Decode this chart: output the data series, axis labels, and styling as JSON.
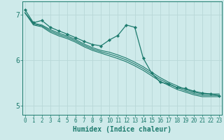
{
  "xlabel": "Humidex (Indice chaleur)",
  "background_color": "#ceeaea",
  "grid_color": "#b8d8d8",
  "line_color": "#1e7b6e",
  "x_values": [
    0,
    1,
    2,
    3,
    4,
    5,
    6,
    7,
    8,
    9,
    10,
    11,
    12,
    13,
    14,
    15,
    16,
    17,
    18,
    19,
    20,
    21,
    22,
    23
  ],
  "series_plain": [
    [
      7.05,
      6.82,
      6.78,
      6.68,
      6.6,
      6.54,
      6.46,
      6.36,
      6.28,
      6.22,
      6.18,
      6.12,
      6.05,
      5.96,
      5.86,
      5.74,
      5.62,
      5.52,
      5.44,
      5.36,
      5.3,
      5.26,
      5.26,
      5.26
    ],
    [
      7.05,
      6.8,
      6.76,
      6.65,
      6.57,
      6.51,
      6.43,
      6.33,
      6.25,
      6.19,
      6.14,
      6.08,
      6.01,
      5.92,
      5.82,
      5.7,
      5.58,
      5.49,
      5.4,
      5.33,
      5.27,
      5.23,
      5.23,
      5.23
    ],
    [
      7.05,
      6.78,
      6.74,
      6.62,
      6.54,
      6.48,
      6.4,
      6.3,
      6.22,
      6.16,
      6.1,
      6.04,
      5.97,
      5.88,
      5.78,
      5.66,
      5.54,
      5.45,
      5.36,
      5.3,
      5.24,
      5.2,
      5.2,
      5.2
    ]
  ],
  "series_marked": [
    7.12,
    6.83,
    6.88,
    6.73,
    6.65,
    6.58,
    6.5,
    6.42,
    6.35,
    6.32,
    6.45,
    6.55,
    6.78,
    6.73,
    6.05,
    5.72,
    5.52,
    5.48,
    5.4,
    5.38,
    5.32,
    5.28,
    5.26,
    5.22
  ],
  "ylim": [
    4.8,
    7.3
  ],
  "xlim": [
    -0.3,
    23.3
  ],
  "yticks": [
    5,
    6,
    7
  ],
  "xticks": [
    0,
    1,
    2,
    3,
    4,
    5,
    6,
    7,
    8,
    9,
    10,
    11,
    12,
    13,
    14,
    15,
    16,
    17,
    18,
    19,
    20,
    21,
    22,
    23
  ],
  "xlabel_fontsize": 7,
  "ytick_fontsize": 7,
  "xtick_fontsize": 5.5
}
